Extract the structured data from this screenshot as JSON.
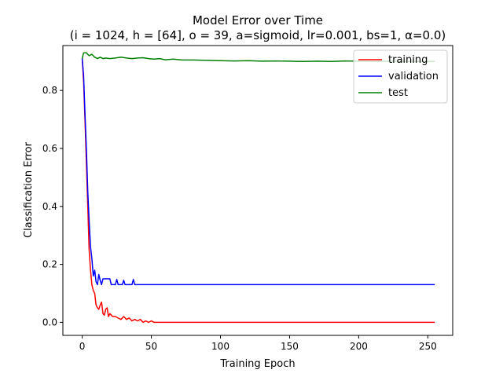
{
  "chart_data": {
    "type": "line",
    "title": "Model Error over Time",
    "subtitle": "(i = 1024, h = [64], o = 39, a=sigmoid, lr=0.001, bs=1, α=0.0)",
    "xlabel": "Training Epoch",
    "ylabel": "Classification Error",
    "xlim": [
      -14,
      268
    ],
    "ylim": [
      -0.045,
      0.955
    ],
    "xticks": [
      0,
      50,
      100,
      150,
      200,
      250
    ],
    "yticks": [
      0.0,
      0.2,
      0.4,
      0.6,
      0.8
    ],
    "xtick_labels": [
      "0",
      "50",
      "100",
      "150",
      "200",
      "250"
    ],
    "ytick_labels": [
      "0.0",
      "0.2",
      "0.4",
      "0.6",
      "0.8"
    ],
    "grid": false,
    "legend_position": "top-right",
    "series": [
      {
        "name": "training",
        "color": "#ff0000",
        "points": [
          [
            0,
            0.91
          ],
          [
            1,
            0.83
          ],
          [
            2,
            0.7
          ],
          [
            3,
            0.55
          ],
          [
            4,
            0.4
          ],
          [
            5,
            0.25
          ],
          [
            6,
            0.18
          ],
          [
            7,
            0.13
          ],
          [
            8,
            0.11
          ],
          [
            9,
            0.1
          ],
          [
            10,
            0.06
          ],
          [
            11,
            0.05
          ],
          [
            12,
            0.045
          ],
          [
            13,
            0.06
          ],
          [
            14,
            0.07
          ],
          [
            15,
            0.03
          ],
          [
            16,
            0.025
          ],
          [
            17,
            0.045
          ],
          [
            18,
            0.05
          ],
          [
            19,
            0.02
          ],
          [
            20,
            0.03
          ],
          [
            22,
            0.02
          ],
          [
            24,
            0.02
          ],
          [
            26,
            0.015
          ],
          [
            28,
            0.01
          ],
          [
            30,
            0.02
          ],
          [
            32,
            0.01
          ],
          [
            34,
            0.015
          ],
          [
            36,
            0.005
          ],
          [
            38,
            0.01
          ],
          [
            40,
            0.005
          ],
          [
            42,
            0.01
          ],
          [
            44,
            0.0
          ],
          [
            46,
            0.005
          ],
          [
            48,
            0.0
          ],
          [
            50,
            0.005
          ],
          [
            52,
            0.0
          ],
          [
            55,
            0.0
          ],
          [
            60,
            0.0
          ],
          [
            100,
            0.0
          ],
          [
            150,
            0.0
          ],
          [
            200,
            0.0
          ],
          [
            255,
            0.0
          ]
        ]
      },
      {
        "name": "validation",
        "color": "#0000ff",
        "points": [
          [
            0,
            0.91
          ],
          [
            1,
            0.85
          ],
          [
            2,
            0.72
          ],
          [
            3,
            0.6
          ],
          [
            4,
            0.45
          ],
          [
            5,
            0.35
          ],
          [
            6,
            0.26
          ],
          [
            7,
            0.22
          ],
          [
            8,
            0.16
          ],
          [
            9,
            0.18
          ],
          [
            10,
            0.14
          ],
          [
            11,
            0.13
          ],
          [
            12,
            0.165
          ],
          [
            13,
            0.145
          ],
          [
            14,
            0.13
          ],
          [
            15,
            0.15
          ],
          [
            16,
            0.15
          ],
          [
            17,
            0.15
          ],
          [
            18,
            0.15
          ],
          [
            19,
            0.15
          ],
          [
            20,
            0.15
          ],
          [
            21,
            0.13
          ],
          [
            22,
            0.13
          ],
          [
            23,
            0.13
          ],
          [
            24,
            0.13
          ],
          [
            25,
            0.148
          ],
          [
            26,
            0.13
          ],
          [
            27,
            0.13
          ],
          [
            28,
            0.13
          ],
          [
            29,
            0.13
          ],
          [
            30,
            0.145
          ],
          [
            31,
            0.13
          ],
          [
            32,
            0.13
          ],
          [
            35,
            0.13
          ],
          [
            36,
            0.13
          ],
          [
            37,
            0.148
          ],
          [
            38,
            0.13
          ],
          [
            40,
            0.13
          ],
          [
            60,
            0.13
          ],
          [
            100,
            0.13
          ],
          [
            150,
            0.13
          ],
          [
            200,
            0.13
          ],
          [
            255,
            0.13
          ]
        ]
      },
      {
        "name": "test",
        "color": "#008000",
        "points": [
          [
            0,
            0.91
          ],
          [
            1,
            0.93
          ],
          [
            3,
            0.93
          ],
          [
            4,
            0.925
          ],
          [
            5,
            0.92
          ],
          [
            7,
            0.925
          ],
          [
            9,
            0.915
          ],
          [
            11,
            0.91
          ],
          [
            13,
            0.915
          ],
          [
            15,
            0.91
          ],
          [
            17,
            0.912
          ],
          [
            20,
            0.91
          ],
          [
            24,
            0.912
          ],
          [
            28,
            0.915
          ],
          [
            32,
            0.912
          ],
          [
            36,
            0.91
          ],
          [
            40,
            0.912
          ],
          [
            44,
            0.913
          ],
          [
            48,
            0.91
          ],
          [
            52,
            0.908
          ],
          [
            56,
            0.91
          ],
          [
            60,
            0.906
          ],
          [
            66,
            0.908
          ],
          [
            72,
            0.905
          ],
          [
            80,
            0.905
          ],
          [
            90,
            0.904
          ],
          [
            100,
            0.903
          ],
          [
            110,
            0.902
          ],
          [
            120,
            0.903
          ],
          [
            130,
            0.901
          ],
          [
            140,
            0.902
          ],
          [
            150,
            0.901
          ],
          [
            160,
            0.9
          ],
          [
            170,
            0.901
          ],
          [
            180,
            0.9
          ],
          [
            190,
            0.902
          ],
          [
            200,
            0.901
          ],
          [
            210,
            0.9
          ],
          [
            220,
            0.901
          ],
          [
            230,
            0.9
          ],
          [
            240,
            0.9
          ],
          [
            255,
            0.9
          ]
        ]
      }
    ]
  }
}
